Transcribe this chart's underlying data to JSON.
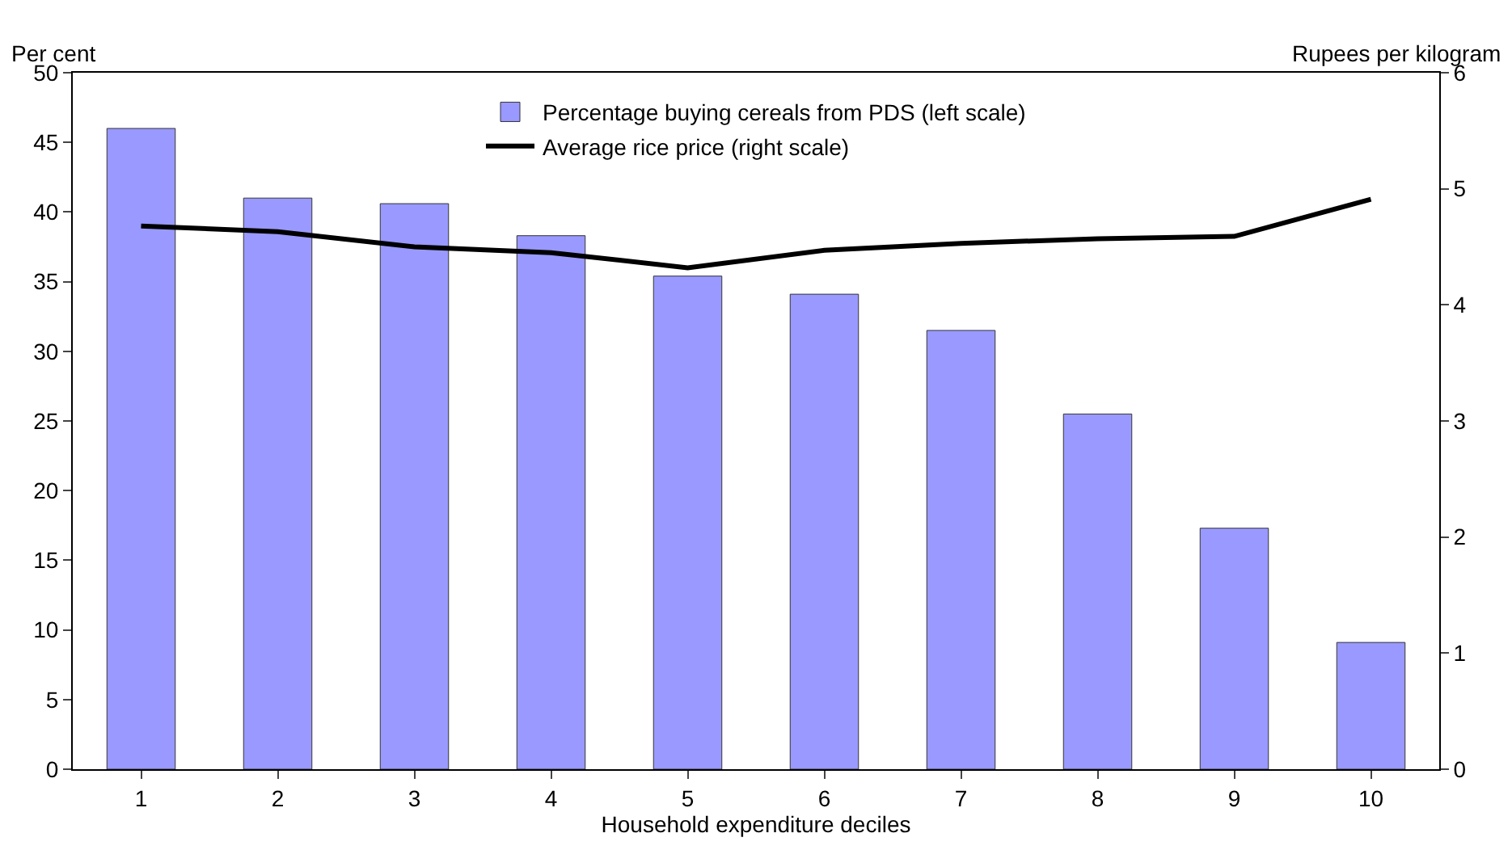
{
  "chart_data": {
    "type": "bar",
    "xlabel": "Household expenditure deciles",
    "ylabel": "Per cent",
    "y2label": "Rupees per kilogram",
    "categories": [
      "1",
      "2",
      "3",
      "4",
      "5",
      "6",
      "7",
      "8",
      "9",
      "10"
    ],
    "series": [
      {
        "name": "Percentage buying cereals from PDS (left scale)",
        "color": "#9999ff",
        "values": [
          46.0,
          41.0,
          40.6,
          38.3,
          35.4,
          34.1,
          31.5,
          25.5,
          17.3,
          9.1
        ]
      },
      {
        "name": "Average rice price (right scale)",
        "color": "#000000",
        "type": "line",
        "axis": "y2",
        "values": [
          4.68,
          4.63,
          4.5,
          4.45,
          4.32,
          4.47,
          4.53,
          4.57,
          4.59,
          4.91
        ]
      }
    ],
    "ylim": [
      0,
      50
    ],
    "yticks": [
      0,
      5,
      10,
      15,
      20,
      25,
      30,
      35,
      40,
      45,
      50
    ],
    "y2lim": [
      0,
      6
    ],
    "y2ticks": [
      0,
      1,
      2,
      3,
      4,
      5,
      6
    ],
    "grid": false,
    "legend": "top",
    "marker": "none",
    "line_style": "solid"
  }
}
